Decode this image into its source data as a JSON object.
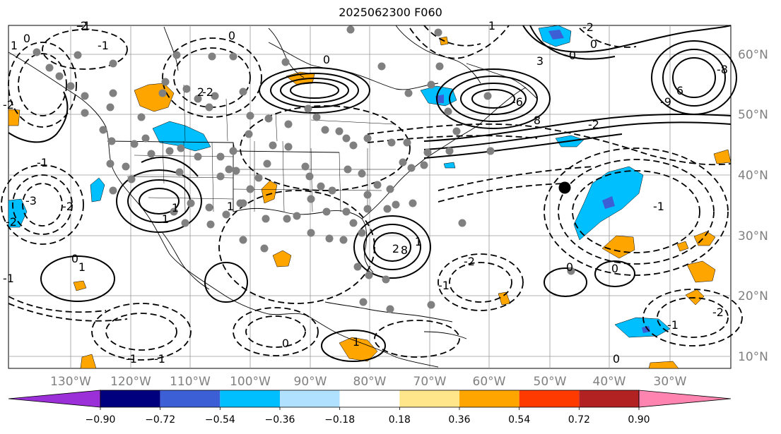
{
  "title": "2025062300 F060",
  "map": {
    "lon_ticks": [
      "130°W",
      "120°W",
      "110°W",
      "100°W",
      "90°W",
      "80°W",
      "70°W",
      "60°W",
      "50°W",
      "40°W",
      "30°W"
    ],
    "lat_ticks": [
      "60°N",
      "50°N",
      "40°N",
      "30°N",
      "20°N",
      "10°N"
    ],
    "contour_labels": [
      "0",
      "-1",
      "-2",
      "1",
      "2",
      "3",
      "-3",
      "-6",
      "6",
      "-8",
      "8",
      "-9"
    ],
    "marker": "storm-center-dot",
    "label_color": "#808080"
  },
  "colorbar": {
    "ticks": [
      "−0.90",
      "−0.72",
      "−0.54",
      "−0.36",
      "−0.18",
      "0.18",
      "0.36",
      "0.54",
      "0.72",
      "0.90"
    ],
    "colors": [
      "#9b30d9",
      "#00007f",
      "#3d5fd6",
      "#00bfff",
      "#b0e2ff",
      "#ffffff",
      "#ffe68a",
      "#ffa500",
      "#ff3a00",
      "#b22222",
      "#ff85b0"
    ]
  }
}
